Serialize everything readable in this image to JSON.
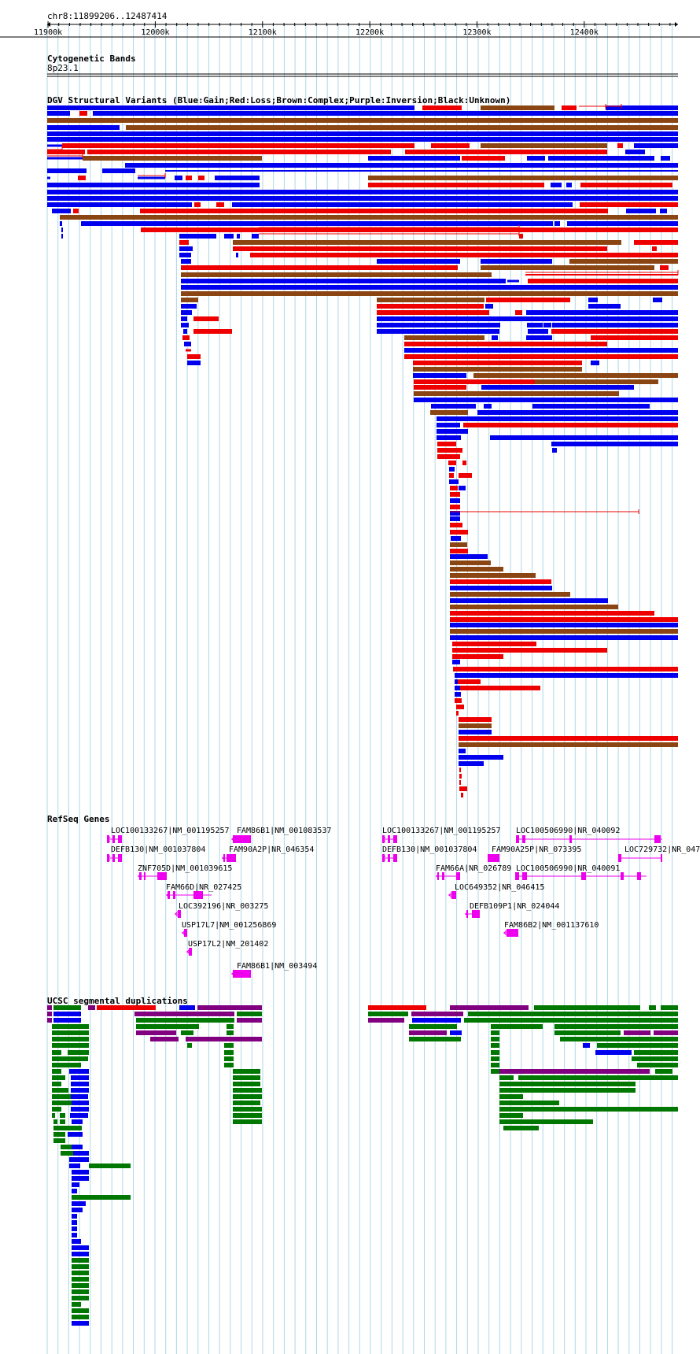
{
  "location": "chr8:11899206..12487414",
  "ruler": {
    "ticks": [
      {
        "pos": 11900000,
        "label": "11900k"
      },
      {
        "pos": 12000000,
        "label": "12000k"
      },
      {
        "pos": 12100000,
        "label": "12100k"
      },
      {
        "pos": 12200000,
        "label": "12200k"
      },
      {
        "pos": 12300000,
        "label": "12300k"
      },
      {
        "pos": 12400000,
        "label": "12400k"
      }
    ]
  },
  "tracks": {
    "cytobands": {
      "title": "Cytogenetic Bands",
      "band": "8p23.1"
    },
    "dgv": {
      "title": "DGV Structural Variants (Blue:Gain;Red:Loss;Brown:Complex;Purple:Inversion;Black:Unknown)"
    },
    "refseq": {
      "title": "RefSeq Genes"
    },
    "segdup": {
      "title": "UCSC segmental duplications"
    }
  },
  "colors": {
    "gain": "#0000ee",
    "loss": "#ee0000",
    "complex": "#8b4513",
    "gene": "#ee00ee",
    "dup_green": "#007700",
    "dup_purple": "#800080",
    "grid": "#add8e6"
  },
  "genes": [
    {
      "label": "LOC100133267|NM_001195257"
    },
    {
      "label": "FAM86B1|NM_001083537"
    },
    {
      "label": "LOC100133267|NM_001195257"
    },
    {
      "label": "LOC100506990|NR_040092"
    },
    {
      "label": "DEFB130|NM_001037804"
    },
    {
      "label": "FAM90A2P|NR_046354"
    },
    {
      "label": "DEFB130|NM_001037804"
    },
    {
      "label": "FAM90A25P|NR_073395"
    },
    {
      "label": "LOC729732|NR_047"
    },
    {
      "label": "ZNF705D|NM_001039615"
    },
    {
      "label": "FAM66A|NR_026789"
    },
    {
      "label": "LOC100506990|NR_040091"
    },
    {
      "label": "FAM66D|NR_027425"
    },
    {
      "label": "LOC649352|NR_046415"
    },
    {
      "label": "LOC392196|NR_003275"
    },
    {
      "label": "DEFB109P1|NR_024044"
    },
    {
      "label": "USP17L7|NM_001256869"
    },
    {
      "label": "FAM86B2|NM_001137610"
    },
    {
      "label": "USP17L2|NM_201402"
    },
    {
      "label": "FAM86B1|NM_003494"
    }
  ]
}
